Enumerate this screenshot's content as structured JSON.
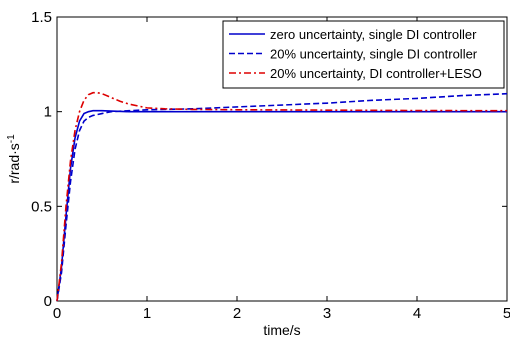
{
  "chart_data": {
    "type": "line",
    "xlabel": "time/s",
    "ylabel": "r/rad·s",
    "ylabel_superscript": "-1",
    "xlim": [
      0,
      5
    ],
    "ylim": [
      0,
      1.5
    ],
    "xticks": [
      0,
      1,
      2,
      3,
      4,
      5
    ],
    "yticks": [
      0,
      0.5,
      1,
      1.5
    ],
    "xtick_labels": [
      "0",
      "1",
      "2",
      "3",
      "4",
      "5"
    ],
    "ytick_labels": [
      "0",
      "0.5",
      "1",
      "1.5"
    ],
    "grid": false,
    "legend_position": "top-right",
    "series": [
      {
        "name": "zero uncertainty, single DI controller",
        "color": "#0000cc",
        "dash": "solid",
        "x": [
          0,
          0.05,
          0.1,
          0.15,
          0.2,
          0.25,
          0.3,
          0.35,
          0.4,
          0.5,
          0.6,
          0.8,
          1.0,
          1.5,
          2,
          3,
          4,
          5
        ],
        "y": [
          0,
          0.18,
          0.45,
          0.7,
          0.86,
          0.95,
          0.99,
          1.0,
          1.005,
          1.005,
          1.003,
          1.0,
          1.0,
          1.0,
          1.0,
          1.0,
          1.0,
          1.0
        ]
      },
      {
        "name": "20% uncertainty, single DI controller",
        "color": "#0000cc",
        "dash": "dashed",
        "x": [
          0,
          0.05,
          0.1,
          0.15,
          0.2,
          0.25,
          0.3,
          0.35,
          0.4,
          0.5,
          0.6,
          0.8,
          1.0,
          1.5,
          2,
          2.5,
          3,
          3.5,
          4,
          4.5,
          5
        ],
        "y": [
          0,
          0.15,
          0.4,
          0.63,
          0.8,
          0.9,
          0.95,
          0.97,
          0.98,
          0.99,
          1.0,
          1.005,
          1.01,
          1.015,
          1.025,
          1.035,
          1.045,
          1.06,
          1.07,
          1.085,
          1.095
        ]
      },
      {
        "name": "20% uncertainty, DI controller+LESO",
        "color": "#dd0000",
        "dash": "dashdot",
        "x": [
          0,
          0.05,
          0.1,
          0.15,
          0.2,
          0.25,
          0.3,
          0.35,
          0.4,
          0.45,
          0.5,
          0.6,
          0.7,
          0.8,
          0.9,
          1.0,
          1.2,
          1.5,
          2,
          3,
          4,
          5
        ],
        "y": [
          0,
          0.2,
          0.5,
          0.74,
          0.9,
          1.0,
          1.06,
          1.09,
          1.1,
          1.1,
          1.095,
          1.075,
          1.055,
          1.04,
          1.03,
          1.02,
          1.015,
          1.012,
          1.01,
          1.008,
          1.006,
          1.005
        ]
      }
    ]
  }
}
